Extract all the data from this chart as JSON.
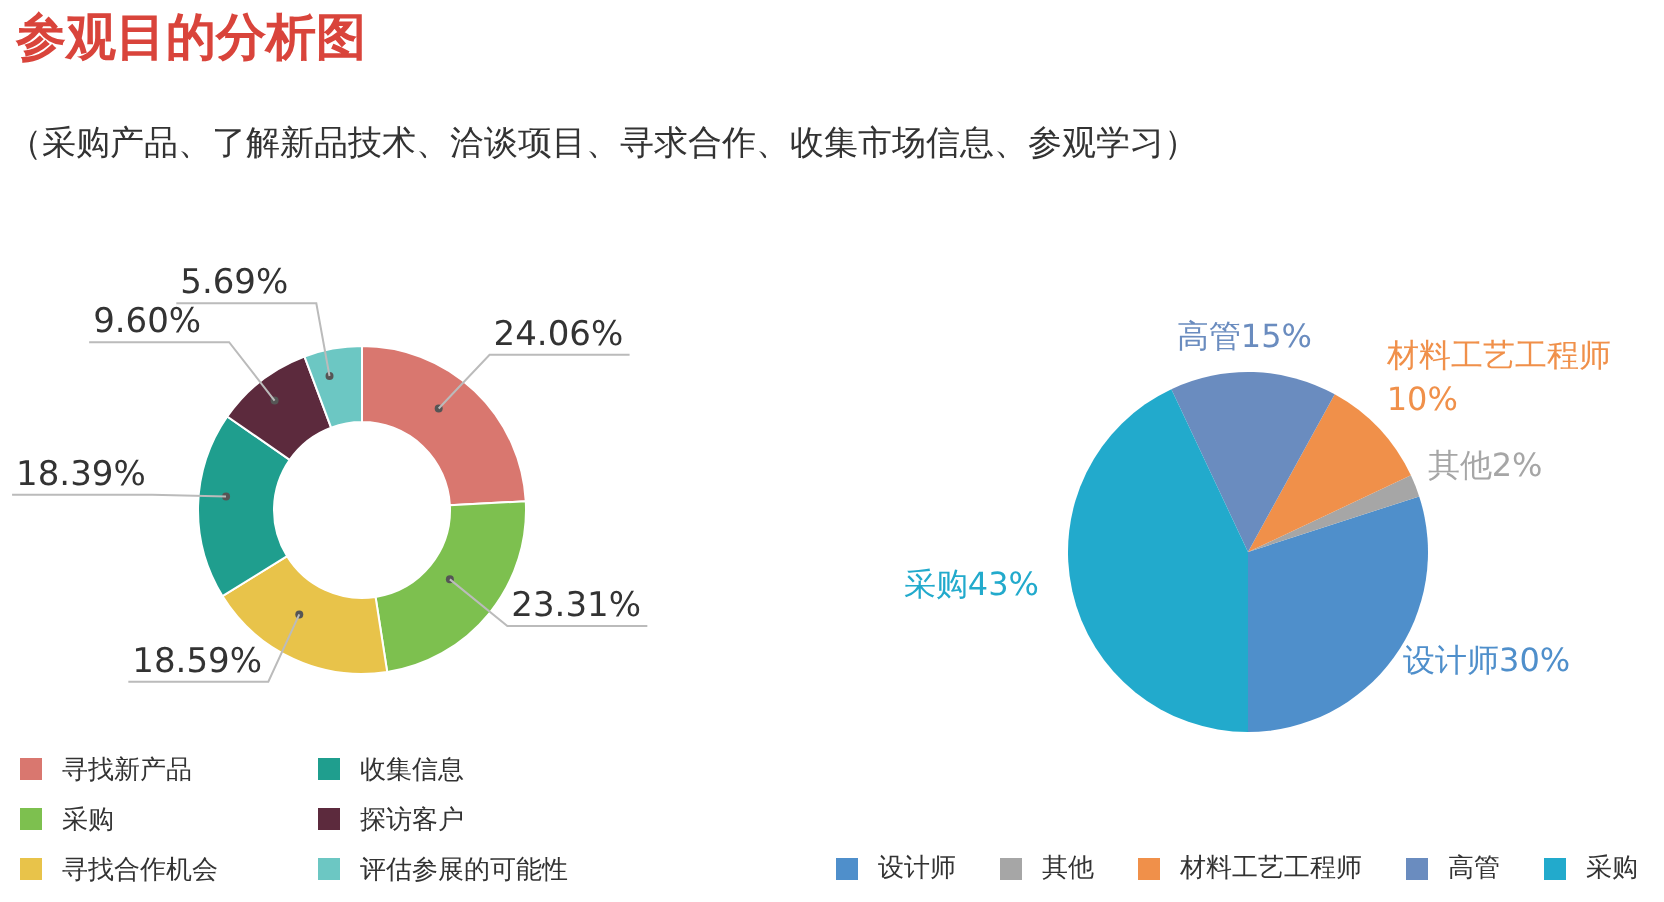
{
  "chart_data": [
    {
      "type": "donut",
      "title": "参观目的分析图",
      "subtitle": "（采购产品、了解新品技术、洽谈项目、寻求合作、收集市场信息、参观学习）",
      "categories": [
        "寻找新产品",
        "采购",
        "寻找合作机会",
        "收集信息",
        "探访客户",
        "评估参展的可能性"
      ],
      "values": [
        24.06,
        23.31,
        18.59,
        18.39,
        9.6,
        5.69
      ],
      "value_labels": [
        "24.06%",
        "23.31%",
        "18.59%",
        "18.39%",
        "9.60%",
        "5.69%"
      ],
      "colors": [
        "#d9776f",
        "#7dc04f",
        "#e8c34a",
        "#1f9e8e",
        "#5c2a3d",
        "#6cc7c3"
      ],
      "legend": "bottom"
    },
    {
      "type": "pie",
      "categories": [
        "设计师",
        "其他",
        "材料工艺工程师",
        "高管",
        "采购"
      ],
      "values": [
        30,
        2,
        10,
        15,
        43
      ],
      "value_labels": [
        "30%",
        "2%",
        "10%",
        "15%",
        "43%"
      ],
      "colors": [
        "#4f8fcb",
        "#a6a6a6",
        "#f0904a",
        "#6a8cbf",
        "#22aacc"
      ],
      "legend": "bottom"
    }
  ]
}
